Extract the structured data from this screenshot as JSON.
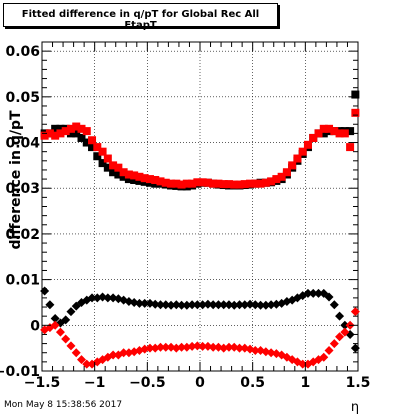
{
  "title": "Fitted difference in q/pT for Global Rec All EtapT",
  "footer": "Mon May  8 15:38:56 2017",
  "colors": {
    "series_black": "#000000",
    "series_red": "#ff0000",
    "grid": "#000000",
    "background": "#ffffff"
  },
  "chart_data": {
    "type": "scatter",
    "title": "Fitted difference in q/pT for Global Rec All EtapT",
    "xlabel": "η",
    "ylabel": "difference in q/pT",
    "xlim": [
      -1.5,
      1.5
    ],
    "ylim": [
      -0.01,
      0.062
    ],
    "grid": true,
    "legend": "none",
    "x_ticks": [
      -1.5,
      -1,
      -0.5,
      0,
      0.5,
      1,
      1.5
    ],
    "x_tick_labels": [
      "−1.5",
      "−1",
      "−0.5",
      "0",
      "0.5",
      "1",
      "1.5"
    ],
    "y_ticks": [
      -0.01,
      0,
      0.01,
      0.02,
      0.03,
      0.04,
      0.05,
      0.06
    ],
    "y_tick_labels": [
      "−0.01",
      "0",
      "0.01",
      "0.02",
      "0.03",
      "0.04",
      "0.05",
      "0.06"
    ],
    "series": [
      {
        "marker": "square",
        "color": "#000000",
        "x": [
          -1.475,
          -1.425,
          -1.375,
          -1.325,
          -1.275,
          -1.225,
          -1.175,
          -1.125,
          -1.075,
          -1.025,
          -0.975,
          -0.925,
          -0.875,
          -0.825,
          -0.775,
          -0.725,
          -0.675,
          -0.625,
          -0.575,
          -0.525,
          -0.475,
          -0.425,
          -0.375,
          -0.325,
          -0.275,
          -0.225,
          -0.175,
          -0.125,
          -0.075,
          -0.025,
          0.025,
          0.075,
          0.125,
          0.175,
          0.225,
          0.275,
          0.325,
          0.375,
          0.425,
          0.475,
          0.525,
          0.575,
          0.625,
          0.675,
          0.725,
          0.775,
          0.825,
          0.875,
          0.925,
          0.975,
          1.025,
          1.075,
          1.125,
          1.175,
          1.225,
          1.275,
          1.325,
          1.375,
          1.425,
          1.475
        ],
        "y": [
          0.042,
          0.042,
          0.043,
          0.043,
          0.043,
          0.042,
          0.042,
          0.041,
          0.04,
          0.039,
          0.037,
          0.0355,
          0.0345,
          0.0335,
          0.033,
          0.0325,
          0.032,
          0.0318,
          0.0316,
          0.0314,
          0.0312,
          0.031,
          0.031,
          0.0308,
          0.0306,
          0.0305,
          0.0304,
          0.0304,
          0.0306,
          0.031,
          0.0312,
          0.0312,
          0.031,
          0.0308,
          0.0307,
          0.0306,
          0.0306,
          0.0306,
          0.0307,
          0.0308,
          0.031,
          0.0312,
          0.0312,
          0.0313,
          0.0316,
          0.032,
          0.033,
          0.0345,
          0.036,
          0.0375,
          0.039,
          0.041,
          0.042,
          0.042,
          0.0425,
          0.0425,
          0.0425,
          0.0425,
          0.0425,
          0.0505
        ]
      },
      {
        "marker": "square",
        "color": "#ff0000",
        "x": [
          -1.475,
          -1.425,
          -1.375,
          -1.325,
          -1.275,
          -1.225,
          -1.175,
          -1.125,
          -1.075,
          -1.025,
          -0.975,
          -0.925,
          -0.875,
          -0.825,
          -0.775,
          -0.725,
          -0.675,
          -0.625,
          -0.575,
          -0.525,
          -0.475,
          -0.425,
          -0.375,
          -0.325,
          -0.275,
          -0.225,
          -0.175,
          -0.125,
          -0.075,
          -0.025,
          0.025,
          0.075,
          0.125,
          0.175,
          0.225,
          0.275,
          0.325,
          0.375,
          0.425,
          0.475,
          0.525,
          0.575,
          0.625,
          0.675,
          0.725,
          0.775,
          0.825,
          0.875,
          0.925,
          0.975,
          1.025,
          1.075,
          1.125,
          1.175,
          1.225,
          1.275,
          1.325,
          1.375,
          1.425,
          1.475
        ],
        "y": [
          0.0415,
          0.042,
          0.0415,
          0.042,
          0.0425,
          0.043,
          0.0435,
          0.043,
          0.0425,
          0.0405,
          0.039,
          0.038,
          0.0365,
          0.035,
          0.0345,
          0.0335,
          0.033,
          0.0328,
          0.0325,
          0.0322,
          0.032,
          0.0318,
          0.0315,
          0.0312,
          0.031,
          0.031,
          0.0308,
          0.031,
          0.031,
          0.0313,
          0.0313,
          0.0312,
          0.031,
          0.031,
          0.0309,
          0.0309,
          0.0308,
          0.0308,
          0.0309,
          0.031,
          0.031,
          0.031,
          0.0312,
          0.0315,
          0.032,
          0.0325,
          0.0335,
          0.035,
          0.0365,
          0.038,
          0.0395,
          0.041,
          0.042,
          0.043,
          0.043,
          0.0425,
          0.042,
          0.042,
          0.039,
          0.0465
        ]
      },
      {
        "marker": "diamond",
        "color": "#000000",
        "x": [
          -1.475,
          -1.425,
          -1.375,
          -1.325,
          -1.275,
          -1.225,
          -1.175,
          -1.125,
          -1.075,
          -1.025,
          -0.975,
          -0.925,
          -0.875,
          -0.825,
          -0.775,
          -0.725,
          -0.675,
          -0.625,
          -0.575,
          -0.525,
          -0.475,
          -0.425,
          -0.375,
          -0.325,
          -0.275,
          -0.225,
          -0.175,
          -0.125,
          -0.075,
          -0.025,
          0.025,
          0.075,
          0.125,
          0.175,
          0.225,
          0.275,
          0.325,
          0.375,
          0.425,
          0.475,
          0.525,
          0.575,
          0.625,
          0.675,
          0.725,
          0.775,
          0.825,
          0.875,
          0.925,
          0.975,
          1.025,
          1.075,
          1.125,
          1.175,
          1.225,
          1.275,
          1.325,
          1.375,
          1.425,
          1.475
        ],
        "y": [
          0.0075,
          0.0045,
          0.0015,
          0.0005,
          0.0012,
          0.003,
          0.0042,
          0.005,
          0.0055,
          0.006,
          0.006,
          0.0062,
          0.006,
          0.006,
          0.0058,
          0.0055,
          0.0052,
          0.005,
          0.0048,
          0.0048,
          0.0048,
          0.0046,
          0.0045,
          0.0045,
          0.0044,
          0.0045,
          0.0044,
          0.0044,
          0.0045,
          0.0045,
          0.0045,
          0.0046,
          0.0045,
          0.0045,
          0.0045,
          0.0045,
          0.0044,
          0.0045,
          0.0045,
          0.0046,
          0.0045,
          0.0044,
          0.0044,
          0.0045,
          0.0046,
          0.0048,
          0.0052,
          0.0055,
          0.006,
          0.0065,
          0.007,
          0.007,
          0.007,
          0.007,
          0.0062,
          0.0045,
          0.002,
          0.0,
          -0.002,
          -0.005
        ]
      },
      {
        "marker": "diamond",
        "color": "#ff0000",
        "x": [
          -1.475,
          -1.425,
          -1.375,
          -1.325,
          -1.275,
          -1.225,
          -1.175,
          -1.125,
          -1.075,
          -1.025,
          -0.975,
          -0.925,
          -0.875,
          -0.825,
          -0.775,
          -0.725,
          -0.675,
          -0.625,
          -0.575,
          -0.525,
          -0.475,
          -0.425,
          -0.375,
          -0.325,
          -0.275,
          -0.225,
          -0.175,
          -0.125,
          -0.075,
          -0.025,
          0.025,
          0.075,
          0.125,
          0.175,
          0.225,
          0.275,
          0.325,
          0.375,
          0.425,
          0.475,
          0.525,
          0.575,
          0.625,
          0.675,
          0.725,
          0.775,
          0.825,
          0.875,
          0.925,
          0.975,
          1.025,
          1.075,
          1.125,
          1.175,
          1.225,
          1.275,
          1.325,
          1.375,
          1.425,
          1.475
        ],
        "y": [
          -0.001,
          -0.0005,
          0.0,
          -0.0015,
          -0.003,
          -0.0045,
          -0.006,
          -0.0075,
          -0.0085,
          -0.0085,
          -0.008,
          -0.0075,
          -0.007,
          -0.0065,
          -0.0065,
          -0.006,
          -0.006,
          -0.0058,
          -0.0055,
          -0.0052,
          -0.005,
          -0.005,
          -0.0048,
          -0.0048,
          -0.0048,
          -0.005,
          -0.0048,
          -0.0048,
          -0.0046,
          -0.0045,
          -0.0046,
          -0.0046,
          -0.0048,
          -0.0048,
          -0.005,
          -0.0048,
          -0.0048,
          -0.005,
          -0.005,
          -0.0052,
          -0.0055,
          -0.0055,
          -0.0058,
          -0.006,
          -0.0062,
          -0.0065,
          -0.007,
          -0.0075,
          -0.008,
          -0.0085,
          -0.0085,
          -0.008,
          -0.0075,
          -0.007,
          -0.0055,
          -0.004,
          -0.0025,
          -0.0015,
          0.0,
          0.003
        ]
      }
    ]
  }
}
